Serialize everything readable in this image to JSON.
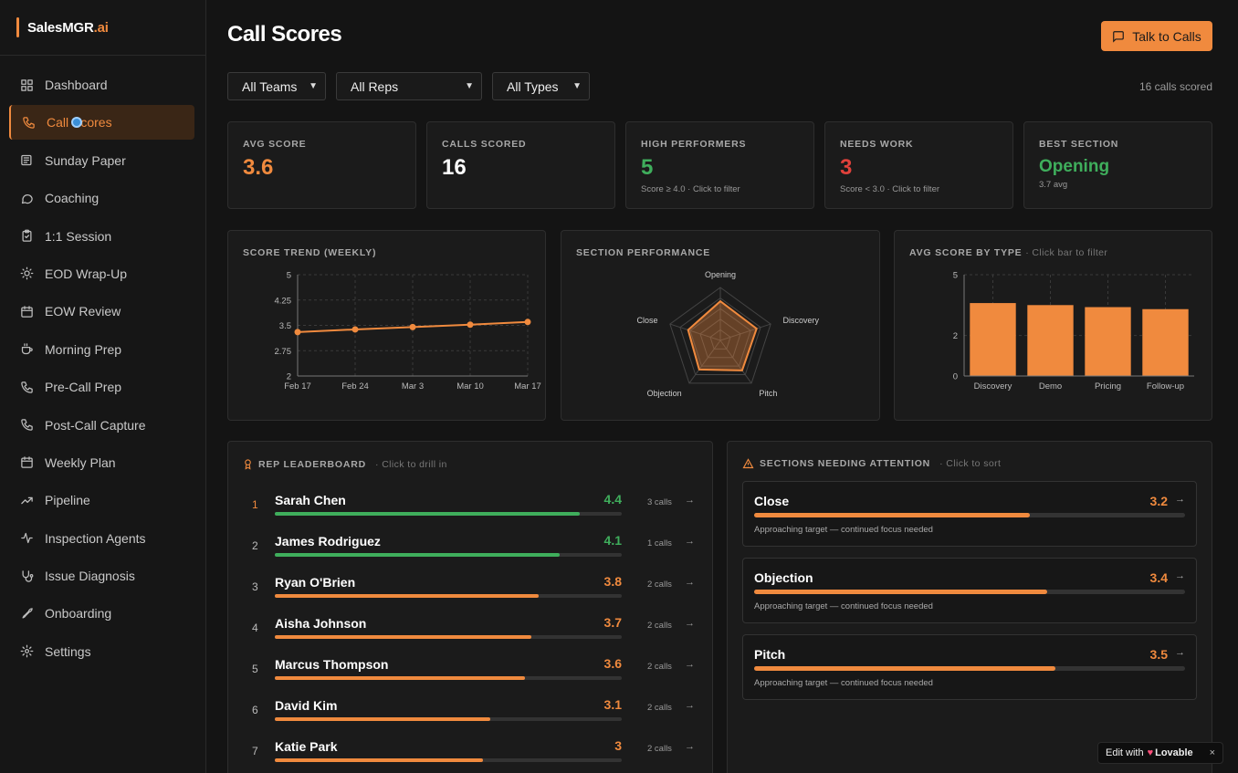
{
  "brand": {
    "name": "SalesMGR",
    "suffix": ".ai"
  },
  "sidebar": {
    "items": [
      {
        "label": "Dashboard",
        "icon": "grid-icon"
      },
      {
        "label": "Call Scores",
        "icon": "phone-icon",
        "active": true
      },
      {
        "label": "Sunday Paper",
        "icon": "newspaper-icon"
      },
      {
        "label": "Coaching",
        "icon": "message-circle-icon"
      },
      {
        "label": "1:1 Session",
        "icon": "clipboard-icon"
      },
      {
        "label": "EOD Wrap-Up",
        "icon": "sun-icon"
      },
      {
        "label": "EOW Review",
        "icon": "calendar-icon"
      },
      {
        "label": "Morning Prep",
        "icon": "coffee-icon"
      },
      {
        "label": "Pre-Call Prep",
        "icon": "phone-outgoing-icon"
      },
      {
        "label": "Post-Call Capture",
        "icon": "phone-call-icon"
      },
      {
        "label": "Weekly Plan",
        "icon": "calendar-check-icon"
      },
      {
        "label": "Pipeline",
        "icon": "trending-up-icon"
      },
      {
        "label": "Inspection Agents",
        "icon": "activity-icon"
      },
      {
        "label": "Issue Diagnosis",
        "icon": "stethoscope-icon"
      },
      {
        "label": "Onboarding",
        "icon": "rocket-icon"
      },
      {
        "label": "Settings",
        "icon": "gear-icon"
      }
    ]
  },
  "header": {
    "title": "Call Scores",
    "talk_button": "Talk to Calls",
    "calls_scored": "16 calls scored"
  },
  "filters": {
    "teams": "All Teams",
    "reps": "All Reps",
    "types": "All Types"
  },
  "kpis": [
    {
      "label": "AVG SCORE",
      "value": "3.6",
      "sub": "",
      "color": "#f08a3e"
    },
    {
      "label": "CALLS SCORED",
      "value": "16",
      "sub": "",
      "color": "#ffffff"
    },
    {
      "label": "HIGH PERFORMERS",
      "value": "5",
      "sub": "Score ≥ 4.0 · Click to filter",
      "color": "#3fae5c"
    },
    {
      "label": "NEEDS WORK",
      "value": "3",
      "sub": "Score < 3.0 · Click to filter",
      "color": "#e0413b"
    },
    {
      "label": "BEST SECTION",
      "value": "Opening",
      "sub": "3.7 avg",
      "color": "#3fae5c"
    }
  ],
  "charts": {
    "trend_label": "SCORE TREND (WEEKLY)",
    "radar_label": "SECTION PERFORMANCE",
    "bytype_label": "AVG SCORE BY TYPE",
    "bytype_hint": "· Click bar to filter"
  },
  "chart_data": [
    {
      "type": "line",
      "x": [
        "Feb 17",
        "Feb 24",
        "Mar 3",
        "Mar 10",
        "Mar 17"
      ],
      "values": [
        3.3,
        3.38,
        3.45,
        3.52,
        3.6
      ],
      "yticks": [
        "5",
        "4.25",
        "3.5",
        "2.75",
        "2"
      ],
      "ylim": [
        2,
        5
      ],
      "grid": true,
      "color": "#f08a3e"
    },
    {
      "type": "radar",
      "categories": [
        "Opening",
        "Discovery",
        "Pitch",
        "Objection",
        "Close"
      ],
      "values": [
        3.7,
        3.6,
        3.5,
        3.4,
        3.2
      ],
      "max": 5,
      "color": "#f08a3e"
    },
    {
      "type": "bar",
      "categories": [
        "Discovery",
        "Demo",
        "Pricing",
        "Follow-up"
      ],
      "values": [
        3.6,
        3.5,
        3.4,
        3.3
      ],
      "yticks": [
        "5",
        "2",
        "0"
      ],
      "ylim": [
        0,
        5
      ],
      "grid": true,
      "color": "#f08a3e"
    }
  ],
  "leaderboard": {
    "title": "REP LEADERBOARD",
    "hint": "· Click to drill in",
    "rows": [
      {
        "rank": "1",
        "name": "Sarah Chen",
        "score": "4.4",
        "fill": 0.88,
        "calls": "3 calls",
        "color": "#3fae5c"
      },
      {
        "rank": "2",
        "name": "James Rodriguez",
        "score": "4.1",
        "fill": 0.82,
        "calls": "1 calls",
        "color": "#3fae5c"
      },
      {
        "rank": "3",
        "name": "Ryan O'Brien",
        "score": "3.8",
        "fill": 0.76,
        "calls": "2 calls",
        "color": "#f08a3e"
      },
      {
        "rank": "4",
        "name": "Aisha Johnson",
        "score": "3.7",
        "fill": 0.74,
        "calls": "2 calls",
        "color": "#f08a3e"
      },
      {
        "rank": "5",
        "name": "Marcus Thompson",
        "score": "3.6",
        "fill": 0.72,
        "calls": "2 calls",
        "color": "#f08a3e"
      },
      {
        "rank": "6",
        "name": "David Kim",
        "score": "3.1",
        "fill": 0.62,
        "calls": "2 calls",
        "color": "#f08a3e"
      },
      {
        "rank": "7",
        "name": "Katie Park",
        "score": "3",
        "fill": 0.6,
        "calls": "2 calls",
        "color": "#f08a3e"
      }
    ]
  },
  "attention": {
    "title": "SECTIONS NEEDING ATTENTION",
    "hint": "· Click to sort",
    "items": [
      {
        "name": "Close",
        "score": "3.2",
        "fill": 0.64,
        "note": "Approaching target — continued focus needed"
      },
      {
        "name": "Objection",
        "score": "3.4",
        "fill": 0.68,
        "note": "Approaching target — continued focus needed"
      },
      {
        "name": "Pitch",
        "score": "3.5",
        "fill": 0.7,
        "note": "Approaching target — continued focus needed"
      }
    ]
  },
  "badge": {
    "prefix": "Edit with",
    "brand": "Lovable",
    "close": "×"
  },
  "colors": {
    "accent": "#f08a3e",
    "good": "#3fae5c",
    "bad": "#e0413b"
  }
}
